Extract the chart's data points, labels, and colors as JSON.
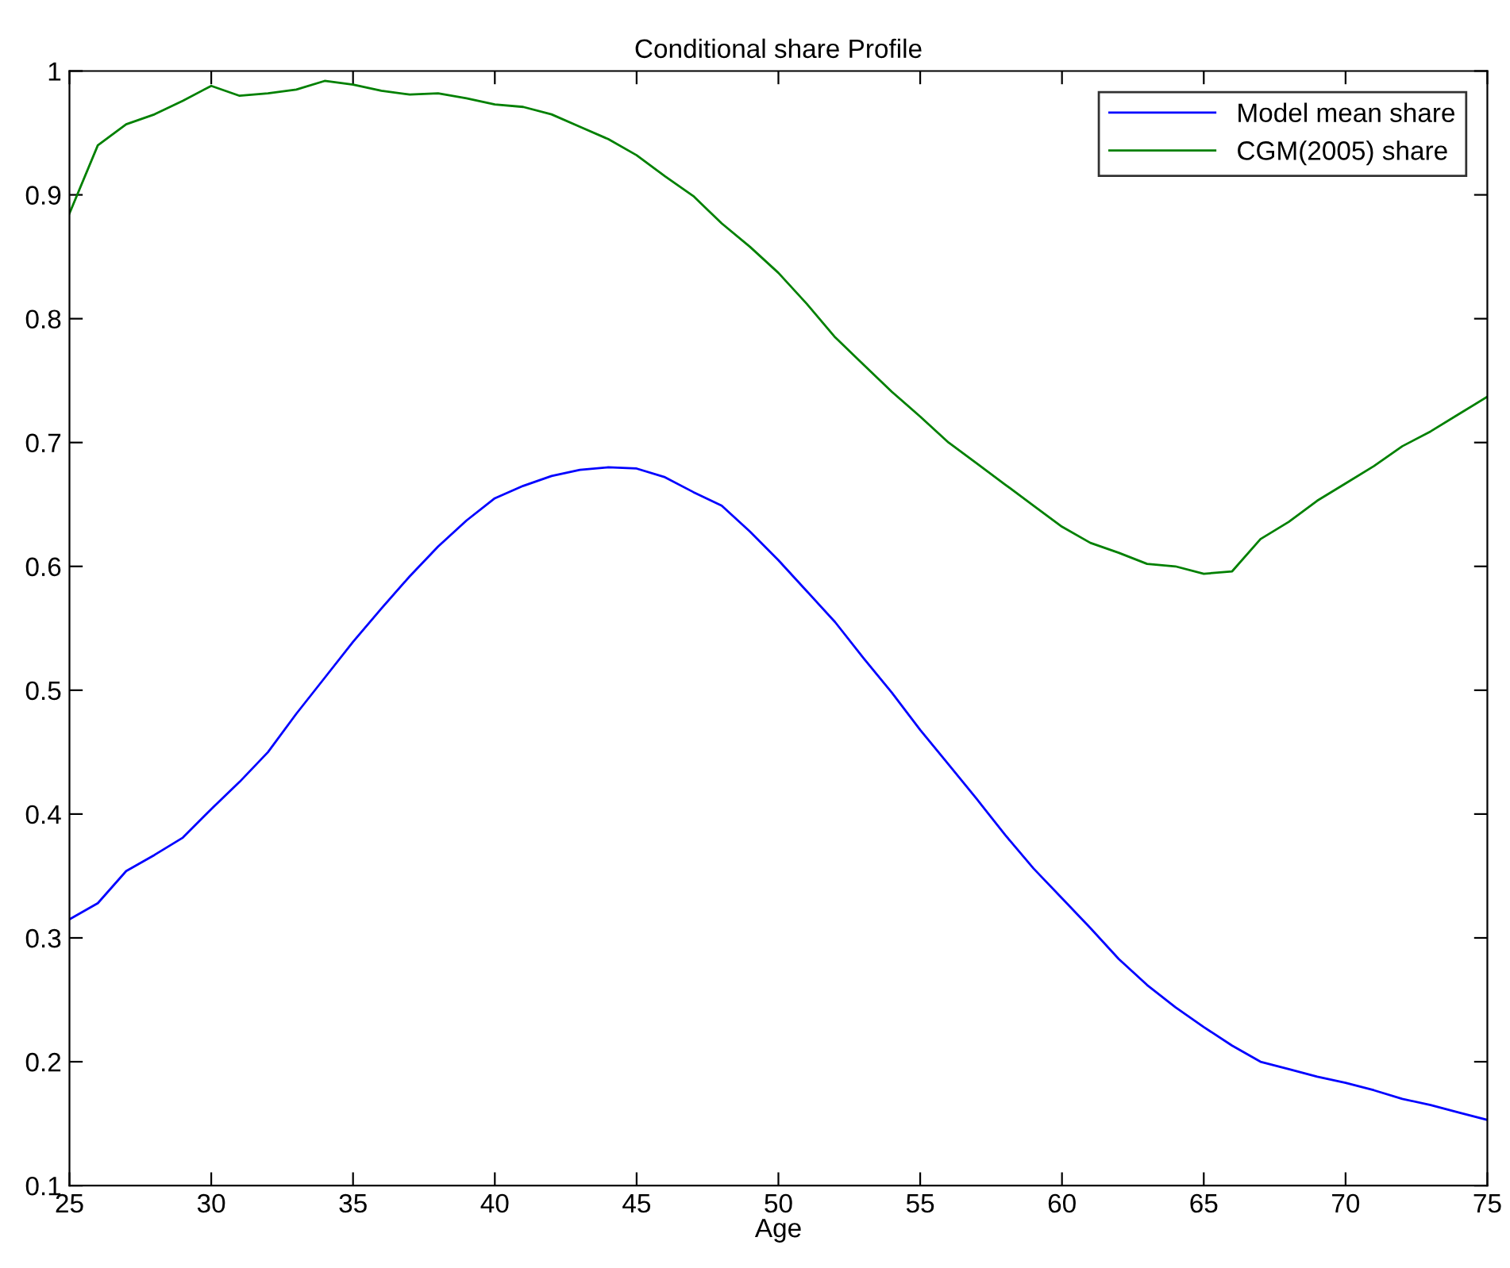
{
  "chart_data": {
    "type": "line",
    "title": "Conditional share Profile",
    "xlabel": "Age",
    "x": [
      25,
      26,
      27,
      28,
      29,
      30,
      31,
      32,
      33,
      34,
      35,
      36,
      37,
      38,
      39,
      40,
      41,
      42,
      43,
      44,
      45,
      46,
      47,
      48,
      49,
      50,
      51,
      52,
      53,
      54,
      55,
      56,
      57,
      58,
      59,
      60,
      61,
      62,
      63,
      64,
      65,
      66,
      67,
      68,
      69,
      70,
      71,
      72,
      73,
      74,
      75
    ],
    "series": [
      {
        "name": "Model mean share",
        "color": "#0000ff",
        "values": [
          0.315,
          0.328,
          0.354,
          0.367,
          0.381,
          0.404,
          0.426,
          0.45,
          0.481,
          0.51,
          0.539,
          0.566,
          0.592,
          0.616,
          0.637,
          0.655,
          0.665,
          0.673,
          0.678,
          0.68,
          0.679,
          0.672,
          0.66,
          0.649,
          0.628,
          0.605,
          0.58,
          0.555,
          0.526,
          0.498,
          0.468,
          0.44,
          0.412,
          0.383,
          0.356,
          0.332,
          0.308,
          0.283,
          0.262,
          0.244,
          0.228,
          0.213,
          0.2,
          0.194,
          0.188,
          0.183,
          0.177,
          0.17,
          0.165,
          0.159,
          0.153
        ]
      },
      {
        "name": "CGM(2005) share",
        "color": "#008000",
        "values": [
          0.885,
          0.94,
          0.957,
          0.965,
          0.976,
          0.988,
          0.98,
          0.982,
          0.985,
          0.992,
          0.989,
          0.984,
          0.981,
          0.982,
          0.978,
          0.973,
          0.971,
          0.965,
          0.955,
          0.945,
          0.932,
          0.915,
          0.899,
          0.877,
          0.858,
          0.837,
          0.812,
          0.785,
          0.763,
          0.741,
          0.721,
          0.7,
          0.683,
          0.666,
          0.649,
          0.632,
          0.619,
          0.611,
          0.602,
          0.6,
          0.594,
          0.596,
          0.622,
          0.636,
          0.653,
          0.667,
          0.681,
          0.697,
          0.709,
          0.723,
          0.737
        ]
      }
    ],
    "xlim": [
      25,
      75
    ],
    "xticks": [
      25,
      30,
      35,
      40,
      45,
      50,
      55,
      60,
      65,
      70,
      75
    ],
    "ylim": [
      0.1,
      1
    ],
    "yticks": [
      0.1,
      0.2,
      0.3,
      0.4,
      0.5,
      0.6,
      0.7,
      0.8,
      0.9,
      1
    ],
    "grid": false,
    "legend": "top right",
    "marker": "none",
    "line_style": "solid"
  }
}
